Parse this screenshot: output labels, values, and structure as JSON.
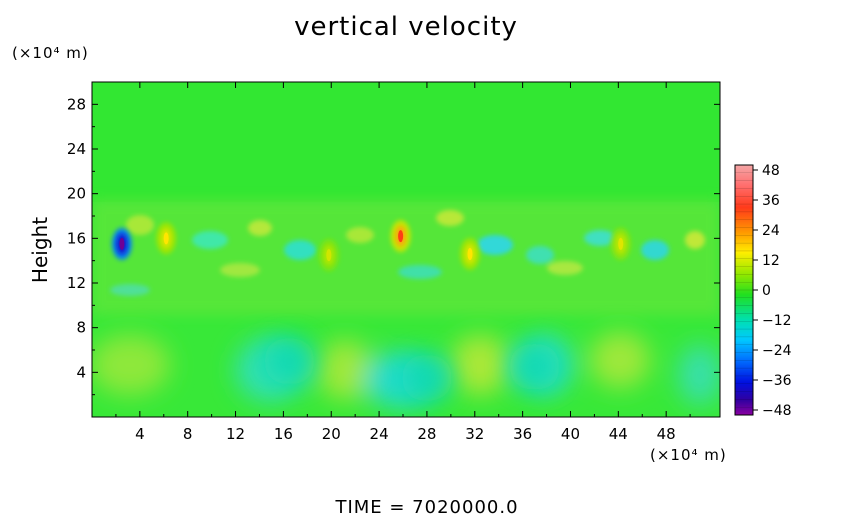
{
  "chart_data": {
    "type": "heatmap",
    "title": "vertical velocity",
    "ylabel": "Height",
    "y_unit": "(×10⁴ m)",
    "x_unit": "(×10⁴ m)",
    "footer": "TIME = 7020000.0",
    "xlim": [
      0,
      52.5
    ],
    "ylim": [
      0,
      30
    ],
    "x_ticks": [
      "4",
      "8",
      "12",
      "16",
      "20",
      "24",
      "28",
      "32",
      "36",
      "40",
      "44",
      "48"
    ],
    "y_ticks": [
      "4",
      "8",
      "12",
      "16",
      "20",
      "24",
      "28"
    ],
    "colorbar": {
      "range": [
        -48,
        48
      ],
      "tick_labels": [
        "48",
        "36",
        "24",
        "12",
        "0",
        "−12",
        "−24",
        "−36",
        "−48"
      ]
    },
    "features": [
      {
        "x": 2.5,
        "y": 15.5,
        "value": -48
      },
      {
        "x": 6.2,
        "y": 16.0,
        "value": 24
      },
      {
        "x": 25.8,
        "y": 16.2,
        "value": 36
      },
      {
        "x": 31.6,
        "y": 14.6,
        "value": 24
      },
      {
        "x": 19.8,
        "y": 14.5,
        "value": 18
      },
      {
        "x": 44.2,
        "y": 15.5,
        "value": 20
      },
      {
        "x": 16.5,
        "y": 5.0,
        "value": -10
      },
      {
        "x": 28.0,
        "y": 3.5,
        "value": -10
      },
      {
        "x": 37.0,
        "y": 4.5,
        "value": -10
      }
    ],
    "grid": false
  }
}
